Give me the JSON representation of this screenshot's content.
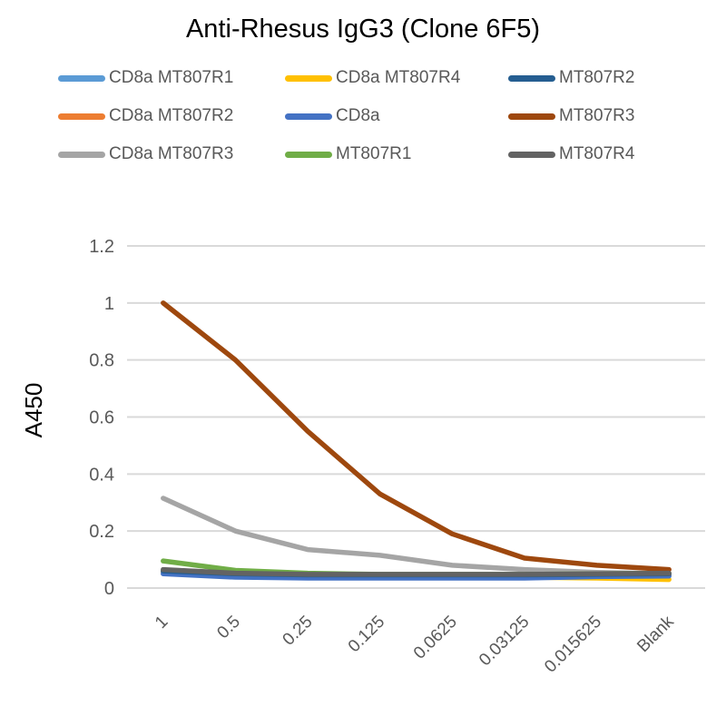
{
  "chart_data": {
    "type": "line",
    "title": "Anti-Rhesus IgG3 (Clone 6F5)",
    "xlabel": "",
    "ylabel": "A450",
    "ylim": [
      0,
      1.2
    ],
    "y_ticks": [
      "0",
      "0.2",
      "0.4",
      "0.6",
      "0.8",
      "1",
      "1.2"
    ],
    "categories": [
      "1",
      "0.5",
      "0.25",
      "0.125",
      "0.0625",
      "0.03125",
      "0.015625",
      "Blank"
    ],
    "grid": "horizontal",
    "legend_position": "top",
    "grid_color": "#D9D9D9",
    "axis_text_color": "#595959",
    "title_color": "#000000",
    "series": [
      {
        "name": "CD8a MT807R1",
        "color": "#5B9BD5",
        "values": [
          0.055,
          0.045,
          0.042,
          0.042,
          0.042,
          0.042,
          0.045,
          0.045
        ]
      },
      {
        "name": "CD8a MT807R2",
        "color": "#ED7D31",
        "values": [
          0.058,
          0.046,
          0.043,
          0.043,
          0.043,
          0.043,
          0.046,
          0.046
        ]
      },
      {
        "name": "CD8a MT807R3",
        "color": "#A5A5A5",
        "values": [
          0.315,
          0.2,
          0.135,
          0.115,
          0.08,
          0.065,
          0.055,
          0.05
        ]
      },
      {
        "name": "CD8a MT807R4",
        "color": "#FFC000",
        "values": [
          0.06,
          0.045,
          0.04,
          0.04,
          0.04,
          0.038,
          0.035,
          0.03
        ]
      },
      {
        "name": "CD8a",
        "color": "#4472C4",
        "values": [
          0.05,
          0.038,
          0.035,
          0.035,
          0.035,
          0.035,
          0.04,
          0.042
        ]
      },
      {
        "name": "MT807R1",
        "color": "#70AD47",
        "values": [
          0.095,
          0.062,
          0.052,
          0.048,
          0.048,
          0.048,
          0.05,
          0.052
        ]
      },
      {
        "name": "MT807R2",
        "color": "#255E91",
        "values": [
          0.06,
          0.05,
          0.046,
          0.046,
          0.046,
          0.046,
          0.048,
          0.05
        ]
      },
      {
        "name": "MT807R3",
        "color": "#9E480E",
        "values": [
          1.0,
          0.8,
          0.55,
          0.33,
          0.19,
          0.105,
          0.08,
          0.065
        ]
      },
      {
        "name": "MT807R4",
        "color": "#636363",
        "values": [
          0.065,
          0.052,
          0.048,
          0.048,
          0.048,
          0.048,
          0.05,
          0.052
        ]
      }
    ]
  }
}
